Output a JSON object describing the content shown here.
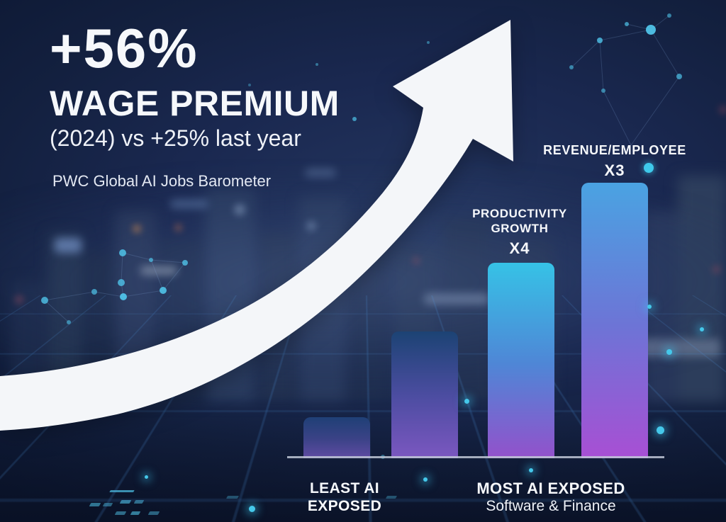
{
  "headline": {
    "stat": "+56%",
    "title": "WAGE PREMIUM",
    "subtitle": "(2024) vs +25% last year",
    "source": "PWC Global AI Jobs Barometer"
  },
  "colors": {
    "text": "#f6f8fb",
    "arrow": "#f4f6f9",
    "baseline": "#c0c7d6",
    "accent_dot": "#3ec9ea",
    "background_deep": "#0d1833"
  },
  "chart_data": {
    "type": "bar",
    "title": "+56% WAGE PREMIUM (2024) vs +25% last year",
    "source": "PWC Global AI Jobs Barometer",
    "categories": [
      "least_ai_exposed_low",
      "least_ai_exposed_high",
      "most_ai_exposed_productivity",
      "most_ai_exposed_revenue"
    ],
    "values": [
      0.15,
      0.46,
      0.71,
      1.0
    ],
    "unit": "relative bar height (tallest = 1.0)",
    "grid": "off",
    "legend": "none",
    "bars": [
      {
        "relative_height": 0.15,
        "color_top": "#1f4076",
        "color_mid": "#3a4286",
        "color_bottom": "#5f4ba3"
      },
      {
        "relative_height": 0.46,
        "color_top": "#1c4374",
        "color_mid": "#4d4da2",
        "color_bottom": "#7b57c0"
      },
      {
        "relative_height": 0.71,
        "color_top": "#36c2e6",
        "color_mid": "#4f86d6",
        "color_bottom": "#9351cb",
        "label_lines": [
          "PRODUCTIVITY",
          "GROWTH"
        ],
        "multiplier": "X4"
      },
      {
        "relative_height": 1.0,
        "color_top": "#4aa3e2",
        "color_mid": "#6d74d6",
        "color_bottom": "#a84fd4",
        "label_lines": [
          "REVENUE/EMPLOYEE"
        ],
        "multiplier": "X3"
      }
    ],
    "x_labels": [
      {
        "line1": "LEAST AI",
        "line2": "EXPOSED"
      },
      {
        "line1": "MOST AI EXPOSED",
        "line2": "Software & Finance"
      }
    ]
  }
}
